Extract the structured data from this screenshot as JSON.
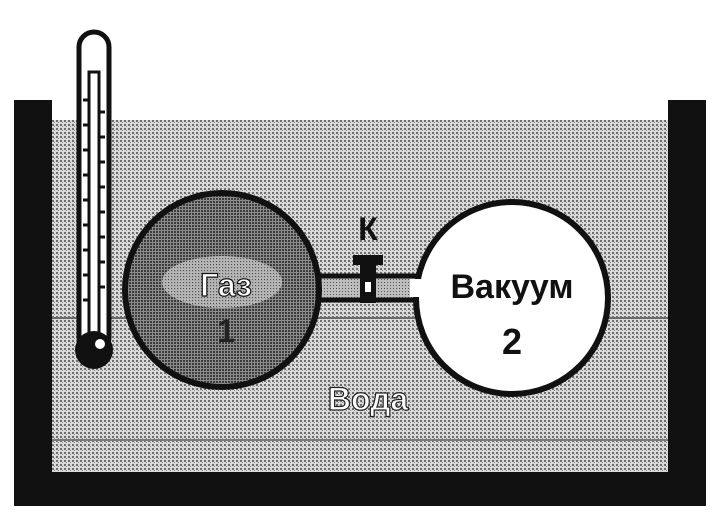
{
  "diagram": {
    "title": "",
    "labels": {
      "gas": "Газ",
      "gas_number": "1",
      "vacuum": "Вакуум",
      "vacuum_number": "2",
      "valve": "К",
      "water": "Вода"
    }
  },
  "colors": {
    "outline": "#111111",
    "water_dots": "#6e6e6e",
    "water_light": "#d9d9d9",
    "gas_dots": "#4a4a4a",
    "vacuum_fill": "#ffffff"
  }
}
